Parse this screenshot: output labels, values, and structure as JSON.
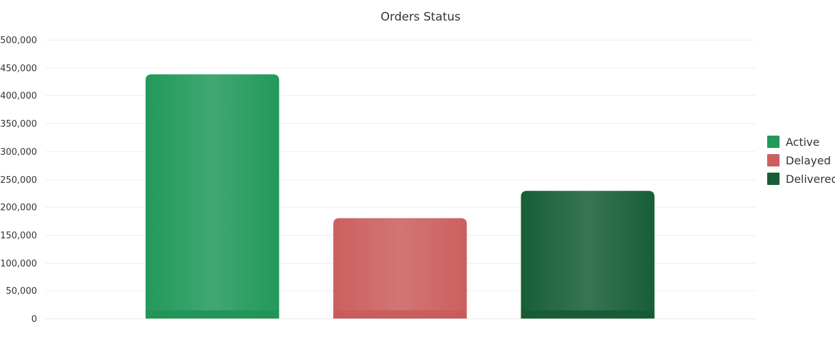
{
  "chart_data": {
    "type": "bar",
    "title": "Orders Status",
    "categories": [
      "Active",
      "Delayed",
      "Delivered"
    ],
    "series": [
      {
        "name": "Active",
        "values": [
          438000,
          null,
          null
        ],
        "color": "#22995a"
      },
      {
        "name": "Delayed",
        "values": [
          null,
          180000,
          null
        ],
        "color": "#cc5f5f"
      },
      {
        "name": "Delivered",
        "values": [
          null,
          null,
          229000
        ],
        "color": "#175e37"
      }
    ],
    "xlabel": "",
    "ylabel": "",
    "ylim": [
      0,
      500000
    ],
    "yticks": [
      0,
      50000,
      100000,
      150000,
      200000,
      250000,
      300000,
      350000,
      400000,
      450000,
      500000
    ],
    "ytick_labels": [
      "0",
      "50,000",
      "100,000",
      "150,000",
      "200,000",
      "250,000",
      "300,000",
      "350,000",
      "400,000",
      "450,000",
      "500,000"
    ],
    "grid": true,
    "legend": {
      "position": "right",
      "entries": [
        "Active",
        "Delayed",
        "Delivered"
      ]
    }
  }
}
